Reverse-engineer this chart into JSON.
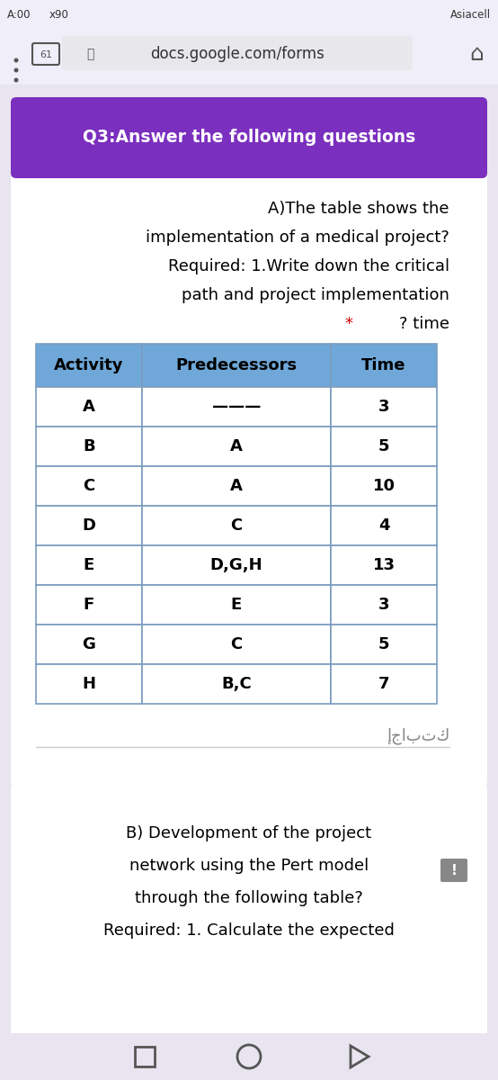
{
  "bg_color": "#e8e4f0",
  "url_text": "docs.google.com/forms",
  "header_bg": "#7b2fbe",
  "header_text": "Q3:Answer the following questions",
  "header_text_color": "#ffffff",
  "card_bg": "#ffffff",
  "body_text_lines": [
    "A)The table shows the",
    "implementation of a medical project?",
    "Required: 1.Write down the critical",
    "path and project implementation"
  ],
  "time_line": "? time",
  "body_text_color": "#000000",
  "star_color": "#cc0000",
  "table_header_bg": "#6fa8d8",
  "table_header_text_color": "#000000",
  "table_row_bg": "#ffffff",
  "table_border_color": "#7b9cbf",
  "table_headers": [
    "Activity",
    "Predecessors",
    "Time"
  ],
  "table_activities": [
    "A",
    "B",
    "C",
    "D",
    "E",
    "F",
    "G",
    "H"
  ],
  "table_predecessors": [
    "———",
    "A",
    "A",
    "C",
    "D,G,H",
    "E",
    "C",
    "B,C"
  ],
  "table_times": [
    "3",
    "5",
    "10",
    "4",
    "13",
    "3",
    "5",
    "7"
  ],
  "arabic_text": "إجابتك",
  "bottom_card_bg": "#ffffff",
  "bottom_text_lines": [
    "B) Development of the project",
    "network using the Pert model",
    "through the following table?",
    "Required: 1. Calculate the expected"
  ],
  "bottom_text_color": "#000000",
  "nav_color": "#555555",
  "status_bar_bg": "#f0eef8",
  "url_bar_bg": "#f0eef8"
}
